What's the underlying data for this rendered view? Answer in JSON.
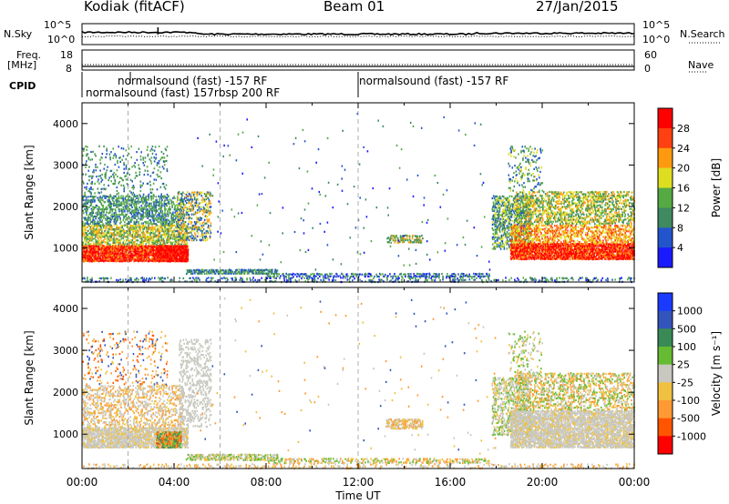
{
  "header": {
    "station": "Kodiak (fitACF)",
    "beam": "Beam 01",
    "date": "27/Jan/2015"
  },
  "panel_labels": {
    "nsky": "N.Sky",
    "nsearch": "N.Search",
    "freq": "Freq.",
    "freq_unit": "[MHz]",
    "nave": "Nave",
    "cpid": "CPID"
  },
  "cpid_labels": [
    {
      "text": "normalsound (fast) -157 RF"
    },
    {
      "text": "normalsound (fast) 157rbsp 200 RF"
    },
    {
      "text": "normalsound (fast) -157 RF"
    }
  ],
  "chart_data": [
    {
      "type": "line",
      "name": "noise",
      "y_left_ticks": [
        "10^5",
        "10^0"
      ],
      "y_right_ticks": [
        "10^5",
        "10^0"
      ]
    },
    {
      "type": "line",
      "name": "frequency",
      "y_left_ticks": [
        "18",
        "8"
      ],
      "y_right_ticks": [
        "60",
        "0"
      ]
    },
    {
      "type": "heatmap",
      "name": "power",
      "ylabel": "Slant Range [km]",
      "yticks": [
        1000,
        2000,
        3000,
        4000
      ],
      "ylim": [
        180,
        4500
      ],
      "colorbar_label": "Power [dB]",
      "colorbar_ticks": [
        4,
        8,
        12,
        16,
        20,
        24,
        28
      ],
      "colors": [
        "#1a1aff",
        "#2255cc",
        "#3f8a60",
        "#55aa44",
        "#dede20",
        "#ff9a10",
        "#ff4010",
        "#ff0000"
      ]
    },
    {
      "type": "heatmap",
      "name": "velocity",
      "ylabel": "Slant Range [km]",
      "yticks": [
        1000,
        2000,
        3000,
        4000
      ],
      "ylim": [
        180,
        4500
      ],
      "colorbar_label": "Velocity [m s⁻¹]",
      "colorbar_ticks": [
        "1000",
        "500",
        "100",
        "25",
        "-25",
        "-100",
        "-500",
        "-1000"
      ],
      "colors": [
        "#1a3aff",
        "#3355bb",
        "#3a8a55",
        "#66bb33",
        "#c8c8c0",
        "#f0c040",
        "#ff9933",
        "#ff5500",
        "#ff0000"
      ]
    }
  ],
  "xaxis": {
    "ticks": [
      "00:00",
      "04:00",
      "08:00",
      "12:00",
      "16:00",
      "20:00",
      "00:00"
    ],
    "label": "Time UT"
  }
}
